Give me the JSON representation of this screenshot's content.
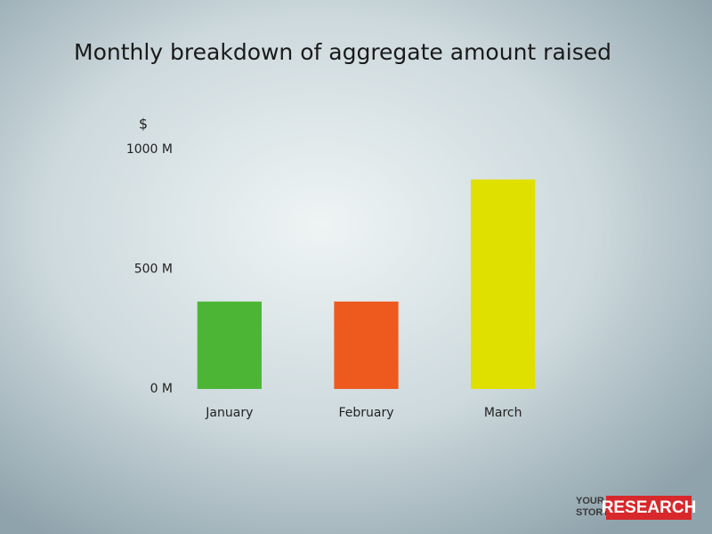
{
  "chart_data": {
    "type": "bar",
    "title": "Monthly breakdown of aggregate amount raised",
    "y_axis_label": "$",
    "categories": [
      "January",
      "February",
      "March"
    ],
    "values": [
      365,
      365,
      875
    ],
    "colors": [
      "#4cb535",
      "#ee5a1e",
      "#e0e000"
    ],
    "ylim": [
      0,
      1000
    ],
    "yticks": [
      {
        "value": 0,
        "label": "0 M"
      },
      {
        "value": 500,
        "label": "500 M"
      },
      {
        "value": 1000,
        "label": "1000 M"
      }
    ],
    "grid": false
  },
  "branding": {
    "line1": "YOUR",
    "line2": "STORY",
    "badge": "RESEARCH"
  }
}
